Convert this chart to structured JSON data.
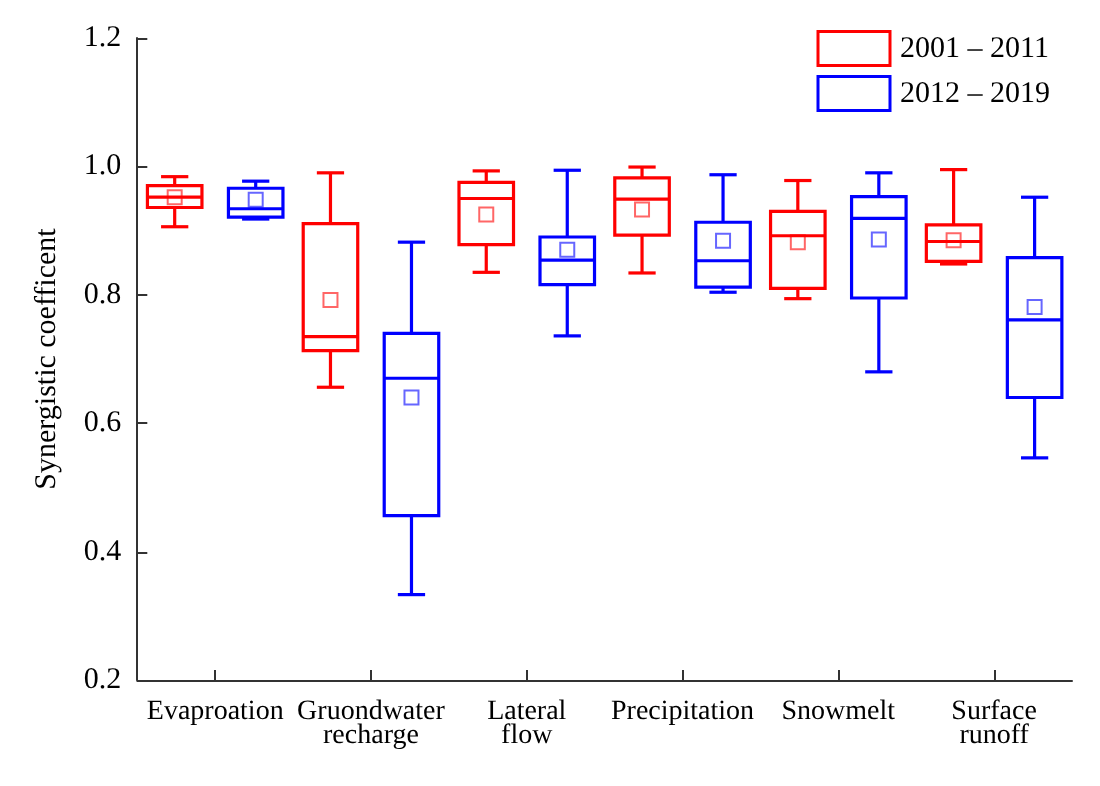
{
  "chart_data": {
    "type": "box",
    "ylabel": "Synergistic coefficent",
    "categories": [
      "Evaproation",
      "Gruondwater\nrecharge",
      "Lateral\nflow",
      "Precipitation",
      "Snowmelt",
      "Surface\nrunoff"
    ],
    "series": [
      {
        "name": "2001 – 2011",
        "color": "#ff0000",
        "boxes": [
          {
            "low": 0.906,
            "q1": 0.936,
            "median": 0.952,
            "q3": 0.97,
            "high": 0.984,
            "mean": 0.952
          },
          {
            "low": 0.656,
            "q1": 0.713,
            "median": 0.735,
            "q3": 0.911,
            "high": 0.99,
            "mean": 0.792
          },
          {
            "low": 0.835,
            "q1": 0.878,
            "median": 0.95,
            "q3": 0.975,
            "high": 0.993,
            "mean": 0.925
          },
          {
            "low": 0.834,
            "q1": 0.893,
            "median": 0.949,
            "q3": 0.982,
            "high": 0.999,
            "mean": 0.933
          },
          {
            "low": 0.794,
            "q1": 0.81,
            "median": 0.892,
            "q3": 0.93,
            "high": 0.978,
            "mean": 0.882
          },
          {
            "low": 0.848,
            "q1": 0.852,
            "median": 0.883,
            "q3": 0.909,
            "high": 0.995,
            "mean": 0.885
          }
        ]
      },
      {
        "name": "2012 – 2019",
        "color": "#0000ff",
        "boxes": [
          {
            "low": 0.918,
            "q1": 0.921,
            "median": 0.934,
            "q3": 0.966,
            "high": 0.977,
            "mean": 0.948
          },
          {
            "low": 0.333,
            "q1": 0.456,
            "median": 0.67,
            "q3": 0.74,
            "high": 0.882,
            "mean": 0.64
          },
          {
            "low": 0.736,
            "q1": 0.816,
            "median": 0.854,
            "q3": 0.89,
            "high": 0.994,
            "mean": 0.87
          },
          {
            "low": 0.804,
            "q1": 0.812,
            "median": 0.853,
            "q3": 0.913,
            "high": 0.987,
            "mean": 0.884
          },
          {
            "low": 0.68,
            "q1": 0.795,
            "median": 0.919,
            "q3": 0.953,
            "high": 0.99,
            "mean": 0.886
          },
          {
            "low": 0.546,
            "q1": 0.64,
            "median": 0.761,
            "q3": 0.858,
            "high": 0.952,
            "mean": 0.781
          }
        ]
      }
    ],
    "ylim": [
      0.2,
      1.2
    ],
    "yticks": [
      0.2,
      0.4,
      0.6,
      0.8,
      {
        "value": 1,
        "label": "1.0"
      },
      1.2
    ],
    "grid": false,
    "legend": "top right"
  }
}
